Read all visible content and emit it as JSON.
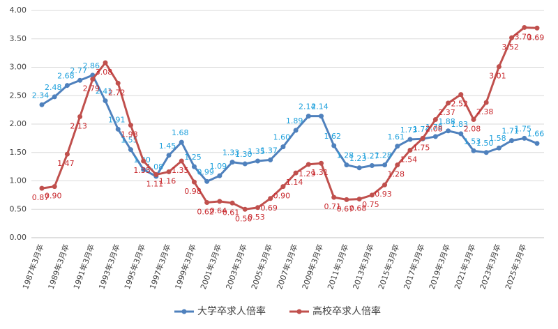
{
  "chart_data": {
    "type": "line",
    "categories": [
      "1987年3月卒",
      null,
      "1989年3月卒",
      null,
      "1991年3月卒",
      null,
      "1993年3月卒",
      null,
      "1995年3月卒",
      null,
      "1997年3月卒",
      null,
      "1999年3月卒",
      null,
      "2001年3月卒",
      null,
      "2003年3月卒",
      null,
      "2005年3月卒",
      null,
      "2007年3月卒",
      null,
      "2009年3月卒",
      null,
      "2011年3月卒",
      null,
      "2013年3月卒",
      null,
      "2015年3月卒",
      null,
      "2017年3月卒",
      null,
      "2019年3月卒",
      null,
      "2021年3月卒",
      null,
      "2023年3月卒",
      null,
      "2025年3月卒",
      null
    ],
    "series": [
      {
        "name": "大学卒求人倍率",
        "color": "#4f81bd",
        "label_color": "#1ea0dc",
        "values": [
          2.34,
          2.48,
          2.68,
          2.77,
          2.86,
          2.41,
          1.91,
          1.55,
          1.2,
          1.08,
          1.45,
          1.68,
          1.25,
          0.99,
          1.09,
          1.33,
          1.3,
          1.35,
          1.37,
          1.6,
          1.89,
          2.14,
          2.14,
          1.62,
          1.28,
          1.23,
          1.27,
          1.28,
          1.61,
          1.73,
          1.74,
          1.78,
          1.88,
          1.83,
          1.53,
          1.5,
          1.58,
          1.71,
          1.75,
          1.66
        ],
        "value_labels": [
          "2.34",
          "2.48",
          "2.68",
          "2.77",
          "2.86",
          "2.41",
          "1.91",
          "1.55",
          "1.20",
          "1.08",
          "1.45",
          "1.68",
          "1.25",
          "0.99",
          "1.09",
          "1.33",
          "1.30",
          "1.35",
          "1.37",
          "1.60",
          "1.89",
          "2.14",
          "2.14",
          "1.62",
          "1.28",
          "1.23",
          "1.27",
          "1.28",
          "1.61",
          "1.73",
          "1.74",
          "1.78",
          "1.88",
          "1.83",
          "1.53",
          "1.50",
          "1.58",
          "1.71",
          "1.75",
          "1.66"
        ]
      },
      {
        "name": "高校卒求人倍率",
        "color": "#c0504d",
        "label_color": "#c8282d",
        "values": [
          0.87,
          0.9,
          1.47,
          2.13,
          2.79,
          3.08,
          2.72,
          1.98,
          1.35,
          1.11,
          1.16,
          1.35,
          0.98,
          0.62,
          0.64,
          0.61,
          0.5,
          0.53,
          0.69,
          0.9,
          1.14,
          1.29,
          1.31,
          0.71,
          0.67,
          0.68,
          0.75,
          0.93,
          1.28,
          1.54,
          1.75,
          2.08,
          2.37,
          2.52,
          2.08,
          2.38,
          3.01,
          3.52,
          3.7,
          3.69
        ],
        "value_labels": [
          "0.87",
          "0.90",
          "1.47",
          "2.13",
          "2.79",
          "3.08",
          "2.72",
          "1.98",
          "1.35",
          "1.11",
          "1.16",
          "1.35",
          "0.98",
          "0.62",
          "0.64",
          "0.61",
          "0.50",
          "0.53",
          "0.69",
          "0.90",
          "1.14",
          "1.29",
          "1.31",
          "0.71",
          "0.67",
          "0.68",
          "0.75",
          "0.93",
          "1.28",
          "1.54",
          "1.75",
          "2.08",
          "2.37",
          "2.52",
          "2.08",
          "2.38",
          "3.01",
          "3.52",
          "3.70",
          "3.69"
        ]
      }
    ],
    "ylim": [
      0,
      4
    ],
    "yticks": [
      {
        "value": 0,
        "label": "0.00"
      },
      {
        "value": 0.5,
        "label": "0.50"
      },
      {
        "value": 1,
        "label": "1.00"
      },
      {
        "value": 1.5,
        "label": "1.50"
      },
      {
        "value": 2,
        "label": "2.00"
      },
      {
        "value": 2.5,
        "label": "2.50"
      },
      {
        "value": 3,
        "label": "3.00"
      },
      {
        "value": 3.5,
        "label": "3.50"
      },
      {
        "value": 4,
        "label": "4.00"
      }
    ],
    "grid": true,
    "legend": "bottom"
  }
}
